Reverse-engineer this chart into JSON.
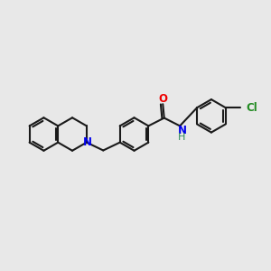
{
  "bg_color": "#e8e8e8",
  "bond_color": "#1a1a1a",
  "N_color": "#0000ee",
  "O_color": "#ee0000",
  "Cl_color": "#228B22",
  "NH_color": "#2E8B57",
  "line_width": 1.5,
  "font_size": 8.5,
  "fig_w": 3.0,
  "fig_h": 3.0,
  "dpi": 100,
  "xlim": [
    0,
    10
  ],
  "ylim": [
    2,
    8
  ]
}
